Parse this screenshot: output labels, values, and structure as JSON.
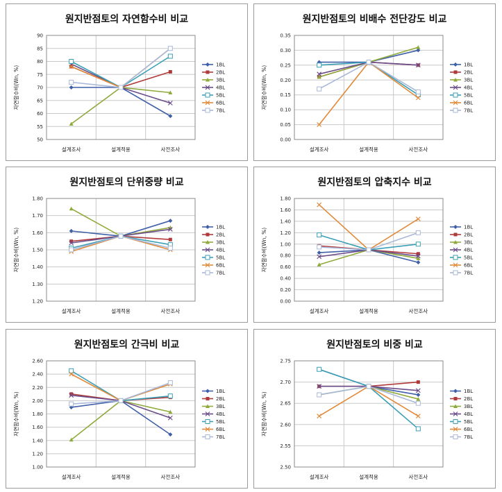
{
  "series_names": [
    "1BL",
    "2BL",
    "3BL",
    "4BL",
    "5BL",
    "6BL",
    "7BL"
  ],
  "series_colors": [
    "#3f5fa8",
    "#b03a3a",
    "#8faa3a",
    "#6b4c8a",
    "#3a9fb5",
    "#e08a3a",
    "#a8b8d8"
  ],
  "series_markers": [
    "diamond",
    "square",
    "triangle",
    "x",
    "square-open",
    "x",
    "square-open"
  ],
  "categories": [
    "설계조사",
    "설계적용",
    "사전조사"
  ],
  "chart_data": [
    {
      "type": "line",
      "title": "원지반점토의 자연함수비 비교",
      "ylabel": "자연함수비(Wn, %)",
      "ylim": [
        50,
        90
      ],
      "yticks": [
        "50",
        "55",
        "60",
        "65",
        "70",
        "75",
        "80",
        "85",
        "90"
      ],
      "categories": [
        "설계조사",
        "설계적용",
        "사전조사"
      ],
      "series": [
        {
          "name": "1BL",
          "values": [
            70,
            70,
            59
          ]
        },
        {
          "name": "2BL",
          "values": [
            78,
            70,
            76
          ]
        },
        {
          "name": "3BL",
          "values": [
            56,
            70,
            68
          ]
        },
        {
          "name": "4BL",
          "values": [
            79,
            70,
            64
          ]
        },
        {
          "name": "5BL",
          "values": [
            80,
            70,
            82
          ]
        },
        {
          "name": "6BL",
          "values": [
            78,
            70,
            85
          ]
        },
        {
          "name": "7BL",
          "values": [
            72,
            70,
            85
          ]
        }
      ]
    },
    {
      "type": "line",
      "title": "원지반점토의 비배수 전단강도 비교",
      "ylabel": "자연함수비(Wn, %)",
      "ylim": [
        0,
        0.35
      ],
      "yticks": [
        "0.00",
        "0.05",
        "0.10",
        "0.15",
        "0.20",
        "0.25",
        "0.30",
        "0.35"
      ],
      "categories": [
        "설계조사",
        "설계적용",
        "사전조사"
      ],
      "series": [
        {
          "name": "1BL",
          "values": [
            0.26,
            0.26,
            0.3
          ]
        },
        {
          "name": "2BL",
          "values": [
            0.21,
            0.26,
            0.25
          ]
        },
        {
          "name": "3BL",
          "values": [
            0.21,
            0.26,
            0.31
          ]
        },
        {
          "name": "4BL",
          "values": [
            0.22,
            0.26,
            0.25
          ]
        },
        {
          "name": "5BL",
          "values": [
            0.25,
            0.26,
            0.15
          ]
        },
        {
          "name": "6BL",
          "values": [
            0.05,
            0.26,
            0.14
          ]
        },
        {
          "name": "7BL",
          "values": [
            0.17,
            0.26,
            0.16
          ]
        }
      ]
    },
    {
      "type": "line",
      "title": "원지반점토의 단위중량 비교",
      "ylabel": "자연함수비(Wn, %)",
      "ylim": [
        1.2,
        1.8
      ],
      "yticks": [
        "1.20",
        "1.30",
        "1.40",
        "1.50",
        "1.60",
        "1.70",
        "1.80"
      ],
      "categories": [
        "설계조사",
        "설계적용",
        "사전조사"
      ],
      "series": [
        {
          "name": "1BL",
          "values": [
            1.61,
            1.58,
            1.67
          ]
        },
        {
          "name": "2BL",
          "values": [
            1.55,
            1.58,
            1.56
          ]
        },
        {
          "name": "3BL",
          "values": [
            1.74,
            1.58,
            1.63
          ]
        },
        {
          "name": "4BL",
          "values": [
            1.54,
            1.58,
            1.62
          ]
        },
        {
          "name": "5BL",
          "values": [
            1.51,
            1.58,
            1.53
          ]
        },
        {
          "name": "6BL",
          "values": [
            1.49,
            1.58,
            1.5
          ]
        },
        {
          "name": "7BL",
          "values": [
            1.5,
            1.58,
            1.51
          ]
        }
      ]
    },
    {
      "type": "line",
      "title": "원지반점토의 압축지수 비교",
      "ylabel": "자연함수비(Wn, %)",
      "ylim": [
        0,
        1.8
      ],
      "yticks": [
        "0.00",
        "0.20",
        "0.40",
        "0.60",
        "0.80",
        "1.00",
        "1.20",
        "1.40",
        "1.60",
        "1.80"
      ],
      "categories": [
        "설계조사",
        "설계적용",
        "사전조사"
      ],
      "series": [
        {
          "name": "1BL",
          "values": [
            0.85,
            0.9,
            0.68
          ]
        },
        {
          "name": "2BL",
          "values": [
            0.97,
            0.9,
            0.83
          ]
        },
        {
          "name": "3BL",
          "values": [
            0.64,
            0.9,
            0.75
          ]
        },
        {
          "name": "4BL",
          "values": [
            0.78,
            0.9,
            0.79
          ]
        },
        {
          "name": "5BL",
          "values": [
            1.16,
            0.9,
            1.0
          ]
        },
        {
          "name": "6BL",
          "values": [
            1.69,
            0.9,
            1.44
          ]
        },
        {
          "name": "7BL",
          "values": [
            0.95,
            0.9,
            1.2
          ]
        }
      ]
    },
    {
      "type": "line",
      "title": "원지반점토의 간극비 비교",
      "ylabel": "자연함수비(Wn, %)",
      "ylim": [
        1.0,
        2.6
      ],
      "yticks": [
        "1.00",
        "1.20",
        "1.40",
        "1.60",
        "1.80",
        "2.00",
        "2.20",
        "2.40",
        "2.60"
      ],
      "categories": [
        "설계조사",
        "설계적용",
        "사전조사"
      ],
      "series": [
        {
          "name": "1BL",
          "values": [
            1.9,
            2.0,
            1.49
          ]
        },
        {
          "name": "2BL",
          "values": [
            2.1,
            2.0,
            2.05
          ]
        },
        {
          "name": "3BL",
          "values": [
            1.41,
            2.0,
            1.83
          ]
        },
        {
          "name": "4BL",
          "values": [
            2.08,
            2.0,
            1.74
          ]
        },
        {
          "name": "5BL",
          "values": [
            2.45,
            2.0,
            2.07
          ]
        },
        {
          "name": "6BL",
          "values": [
            2.4,
            2.0,
            2.25
          ]
        },
        {
          "name": "7BL",
          "values": [
            1.95,
            2.0,
            2.27
          ]
        }
      ]
    },
    {
      "type": "line",
      "title": "원지반점토의 비중 비교",
      "ylabel": "자연함수비(Wn, %)",
      "ylim": [
        2.5,
        2.75
      ],
      "yticks": [
        "2.50",
        "2.55",
        "2.60",
        "2.65",
        "2.70",
        "2.75"
      ],
      "categories": [
        "설계조사",
        "설계적용",
        "사전조사"
      ],
      "series": [
        {
          "name": "1BL",
          "values": [
            2.73,
            2.69,
            2.67
          ]
        },
        {
          "name": "2BL",
          "values": [
            2.69,
            2.69,
            2.7
          ]
        },
        {
          "name": "3BL",
          "values": [
            2.67,
            2.69,
            2.66
          ]
        },
        {
          "name": "4BL",
          "values": [
            2.69,
            2.69,
            2.68
          ]
        },
        {
          "name": "5BL",
          "values": [
            2.73,
            2.69,
            2.59
          ]
        },
        {
          "name": "6BL",
          "values": [
            2.62,
            2.69,
            2.62
          ]
        },
        {
          "name": "7BL",
          "values": [
            2.67,
            2.69,
            2.65
          ]
        }
      ]
    }
  ]
}
